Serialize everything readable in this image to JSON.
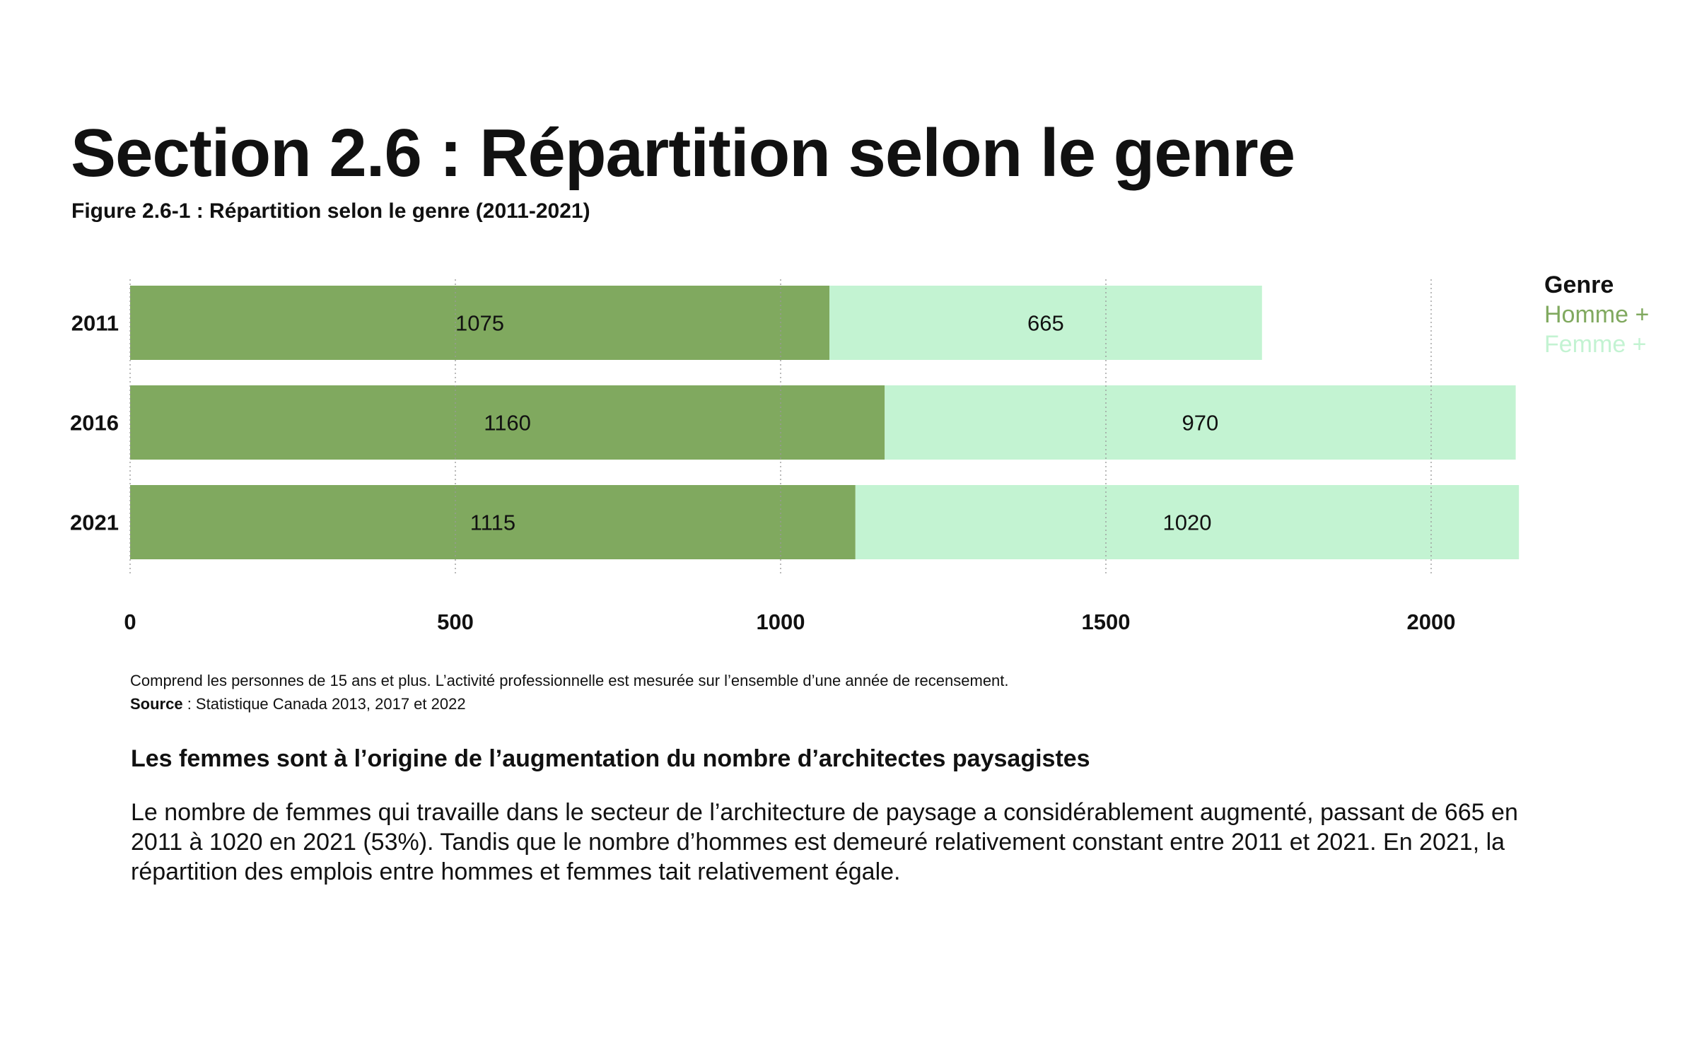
{
  "page": {
    "section_title": "Section 2.6 : Répartition selon le genre",
    "figure_title": "Figure 2.6-1 : Répartition selon le genre (2011-2021)",
    "note": "Comprend les personnes de 15 ans et plus. L’activité professionnelle est mesurée sur l’ensemble d’une année de recensement.",
    "source_label": "Source",
    "source_text": " : Statistique Canada 2013, 2017 et 2022",
    "subhead": "Les femmes sont à l’origine de l’augmentation du nombre d’architectes paysagistes",
    "body": "Le nombre de femmes qui travaille dans le secteur de l’architecture de paysage a considérablement augmenté, passant de 665 en 2011 à 1020 en 2021 (53%). Tandis que le nombre d’hommes est demeuré relativement constant entre 2011 et 2021. En 2021, la répartition des emplois entre hommes et femmes tait relativement égale."
  },
  "chart_data": {
    "type": "bar",
    "orientation": "horizontal",
    "stacked": true,
    "categories": [
      "2011",
      "2016",
      "2021"
    ],
    "series": [
      {
        "name": "Homme +",
        "values": [
          1075,
          1160,
          1115
        ],
        "color": "#80a95f"
      },
      {
        "name": "Femme +",
        "values": [
          665,
          970,
          1020
        ],
        "color": "#c3f3d2"
      }
    ],
    "xlim": [
      0,
      2000
    ],
    "xticks": [
      0,
      500,
      1000,
      1500,
      2000
    ],
    "grid": "vertical-dotted",
    "legend_title": "Genre",
    "legend_position": "right"
  }
}
